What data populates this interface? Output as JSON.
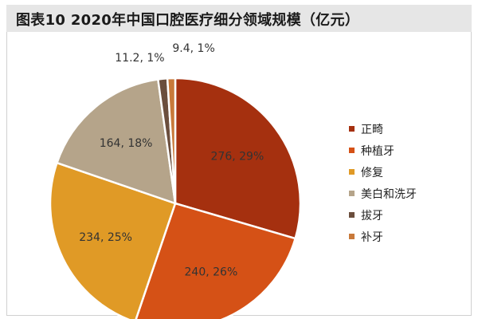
{
  "title": "图表10  2020年中国口腔医疗细分领域规模（亿元）",
  "chart_data": {
    "type": "pie",
    "title": "图表10  2020年中国口腔医疗细分领域规模（亿元）",
    "unit": "亿元",
    "slices": [
      {
        "name": "正畸",
        "value": 276,
        "percent": 29,
        "label": "276, 29%",
        "color": "#a5300f"
      },
      {
        "name": "种植牙",
        "value": 240,
        "percent": 26,
        "label": "240, 26%",
        "color": "#d55116"
      },
      {
        "name": "修复",
        "value": 234,
        "percent": 25,
        "label": "234, 25%",
        "color": "#e09a26"
      },
      {
        "name": "美白和洗牙",
        "value": 164,
        "percent": 18,
        "label": "164, 18%",
        "color": "#b5a48a"
      },
      {
        "name": "拔牙",
        "value": 11.2,
        "percent": 1,
        "label": "11.2, 1%",
        "color": "#6b4e3d"
      },
      {
        "name": "补牙",
        "value": 9.4,
        "percent": 1,
        "label": "9.4, 1%",
        "color": "#c8793a"
      }
    ],
    "legend_position": "right"
  }
}
